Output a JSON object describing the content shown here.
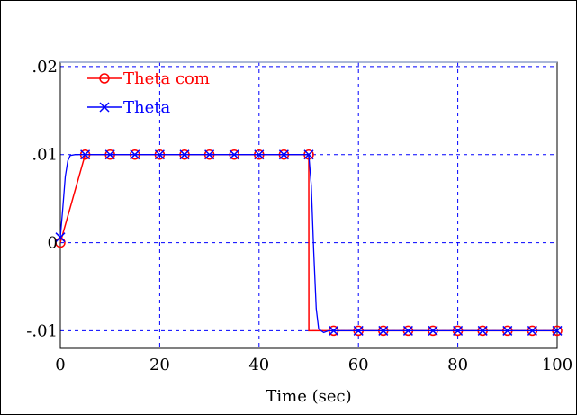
{
  "chart_data": {
    "type": "line",
    "title": "",
    "xlabel": "Time (sec)",
    "ylabel": "",
    "xlim": [
      0,
      100
    ],
    "ylim": [
      -0.012,
      0.0205
    ],
    "grid": true,
    "legend_position": "top-left",
    "x_ticks": [
      0,
      20,
      40,
      60,
      80,
      100
    ],
    "x_tick_labels": [
      "0",
      "20",
      "40",
      "60",
      "80",
      "100"
    ],
    "y_ticks": [
      0.02,
      0.01,
      0,
      -0.01
    ],
    "y_tick_labels": [
      ".02",
      ".01",
      "0",
      "-.01"
    ],
    "series": [
      {
        "name": "Theta com",
        "color": "#ff0000",
        "marker": "circle",
        "x": [
          0,
          5,
          10,
          15,
          20,
          25,
          30,
          35,
          40,
          45,
          50,
          50.01,
          55,
          60,
          65,
          70,
          75,
          80,
          85,
          90,
          95,
          100
        ],
        "y": [
          0,
          0.01,
          0.01,
          0.01,
          0.01,
          0.01,
          0.01,
          0.01,
          0.01,
          0.01,
          0.01,
          -0.01,
          -0.01,
          -0.01,
          -0.01,
          -0.01,
          -0.01,
          -0.01,
          -0.01,
          -0.01,
          -0.01,
          -0.01
        ],
        "marker_x": [
          0,
          5,
          10,
          15,
          20,
          25,
          30,
          35,
          40,
          45,
          50,
          55,
          60,
          65,
          70,
          75,
          80,
          85,
          90,
          95,
          100
        ],
        "marker_y": [
          0,
          0.01,
          0.01,
          0.01,
          0.01,
          0.01,
          0.01,
          0.01,
          0.01,
          0.01,
          0.01,
          -0.01,
          -0.01,
          -0.01,
          -0.01,
          -0.01,
          -0.01,
          -0.01,
          -0.01,
          -0.01,
          -0.01
        ]
      },
      {
        "name": "Theta",
        "color": "#0000ff",
        "marker": "x",
        "x": [
          0,
          0.5,
          1,
          1.5,
          2,
          3,
          4,
          5,
          10,
          15,
          20,
          25,
          30,
          35,
          40,
          45,
          50,
          50.5,
          51,
          51.5,
          52,
          53,
          54,
          55,
          60,
          65,
          70,
          75,
          80,
          85,
          90,
          95,
          100
        ],
        "y": [
          0.0006,
          0.004,
          0.0075,
          0.0093,
          0.0099,
          0.01,
          0.01,
          0.01,
          0.01,
          0.01,
          0.01,
          0.01,
          0.01,
          0.01,
          0.01,
          0.01,
          0.01,
          0.0065,
          -0.001,
          -0.0075,
          -0.0098,
          -0.0102,
          -0.01,
          -0.01,
          -0.01,
          -0.01,
          -0.01,
          -0.01,
          -0.01,
          -0.01,
          -0.01,
          -0.01,
          -0.01
        ],
        "marker_x": [
          0,
          5,
          10,
          15,
          20,
          25,
          30,
          35,
          40,
          45,
          50,
          55,
          60,
          65,
          70,
          75,
          80,
          85,
          90,
          95,
          100
        ],
        "marker_y": [
          0.0006,
          0.01,
          0.01,
          0.01,
          0.01,
          0.01,
          0.01,
          0.01,
          0.01,
          0.01,
          0.01,
          -0.01,
          -0.01,
          -0.01,
          -0.01,
          -0.01,
          -0.01,
          -0.01,
          -0.01,
          -0.01,
          -0.01
        ]
      }
    ]
  }
}
